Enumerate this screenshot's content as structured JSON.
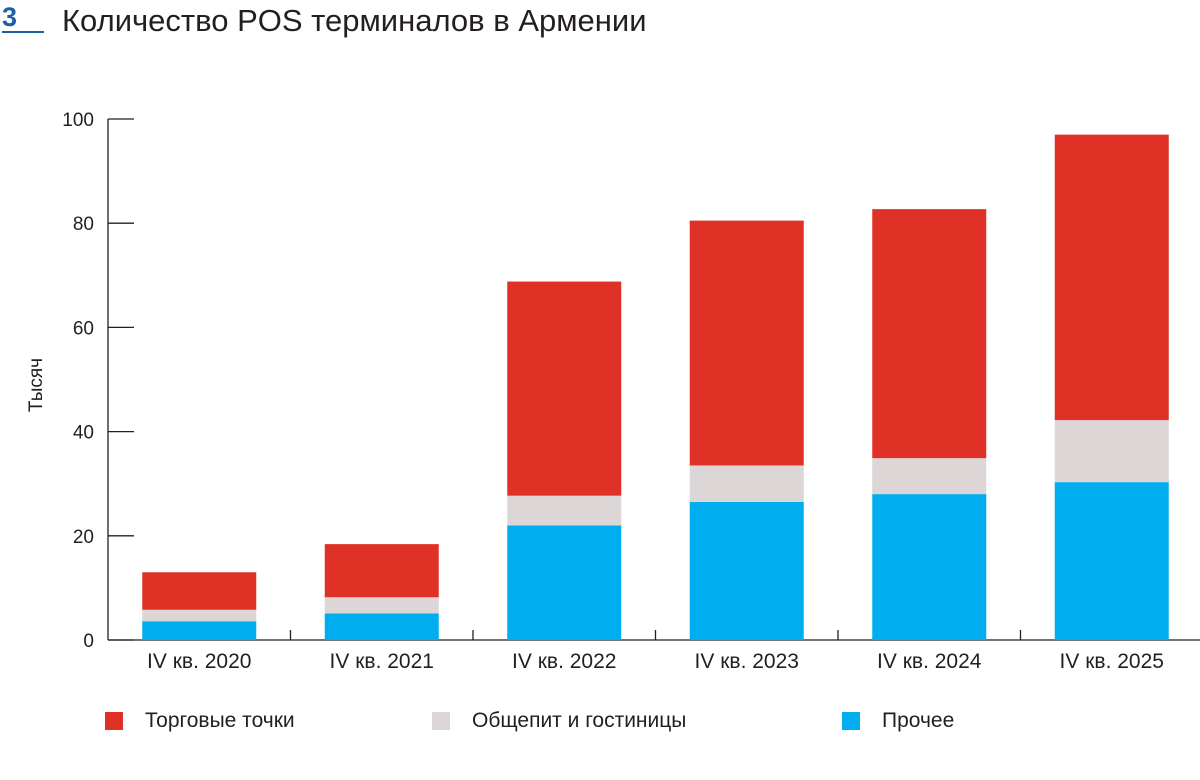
{
  "figure": {
    "number": "3",
    "title": "Количество POS терминалов в Армении"
  },
  "colors": {
    "accent": "#1a5fa8",
    "retail": "#e03127",
    "catering": "#dcd6d6",
    "other": "#00aeef"
  },
  "chart_data": {
    "type": "bar",
    "stacked": true,
    "title": "Количество POS терминалов в Армении",
    "xlabel": "",
    "ylabel": "Тысяч",
    "ylim": [
      0,
      100
    ],
    "yticks": [
      0,
      20,
      40,
      60,
      80,
      100
    ],
    "grid": false,
    "legend_position": "bottom",
    "categories": [
      "IV кв. 2020",
      "IV кв. 2021",
      "IV кв. 2022",
      "IV кв. 2023",
      "IV кв. 2024",
      "IV кв. 2025"
    ],
    "series": [
      {
        "name": "Прочее",
        "color": "#00aeef",
        "values": [
          3.6,
          5.1,
          22.0,
          26.5,
          28.0,
          30.3
        ]
      },
      {
        "name": "Общепит и гостиницы",
        "color": "#dcd6d6",
        "values": [
          2.2,
          3.1,
          5.7,
          7.0,
          6.9,
          11.9
        ]
      },
      {
        "name": "Торговые точки",
        "color": "#e03127",
        "values": [
          7.2,
          10.2,
          41.1,
          47.0,
          47.8,
          54.8
        ]
      }
    ]
  },
  "legend": [
    {
      "label": "Торговые точки",
      "color": "#e03127"
    },
    {
      "label": "Общепит и гостиницы",
      "color": "#dcd6d6"
    },
    {
      "label": "Прочее",
      "color": "#00aeef"
    }
  ]
}
